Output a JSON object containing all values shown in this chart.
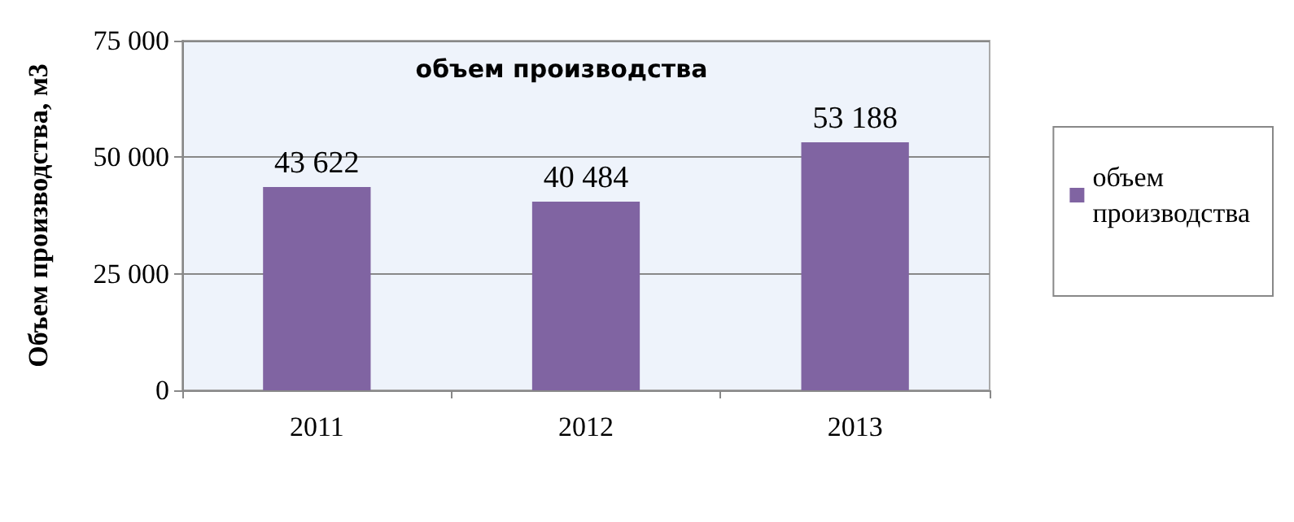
{
  "chart_data": {
    "type": "bar",
    "title": "объем производства",
    "ylabel": "Объем производства, м3",
    "categories": [
      "2011",
      "2012",
      "2013"
    ],
    "series": [
      {
        "name": "объем производства",
        "color": "#8064a2",
        "values": [
          43622,
          40484,
          53188
        ],
        "value_labels": [
          "43 622",
          "40 484",
          "53 188"
        ]
      }
    ],
    "ylim": [
      0,
      75000
    ],
    "yticks": [
      {
        "value": 0,
        "label": "0"
      },
      {
        "value": 25000,
        "label": "25 000"
      },
      {
        "value": 50000,
        "label": "50 000"
      },
      {
        "value": 75000,
        "label": "75 000"
      }
    ],
    "grid": "y",
    "legend": "right"
  }
}
